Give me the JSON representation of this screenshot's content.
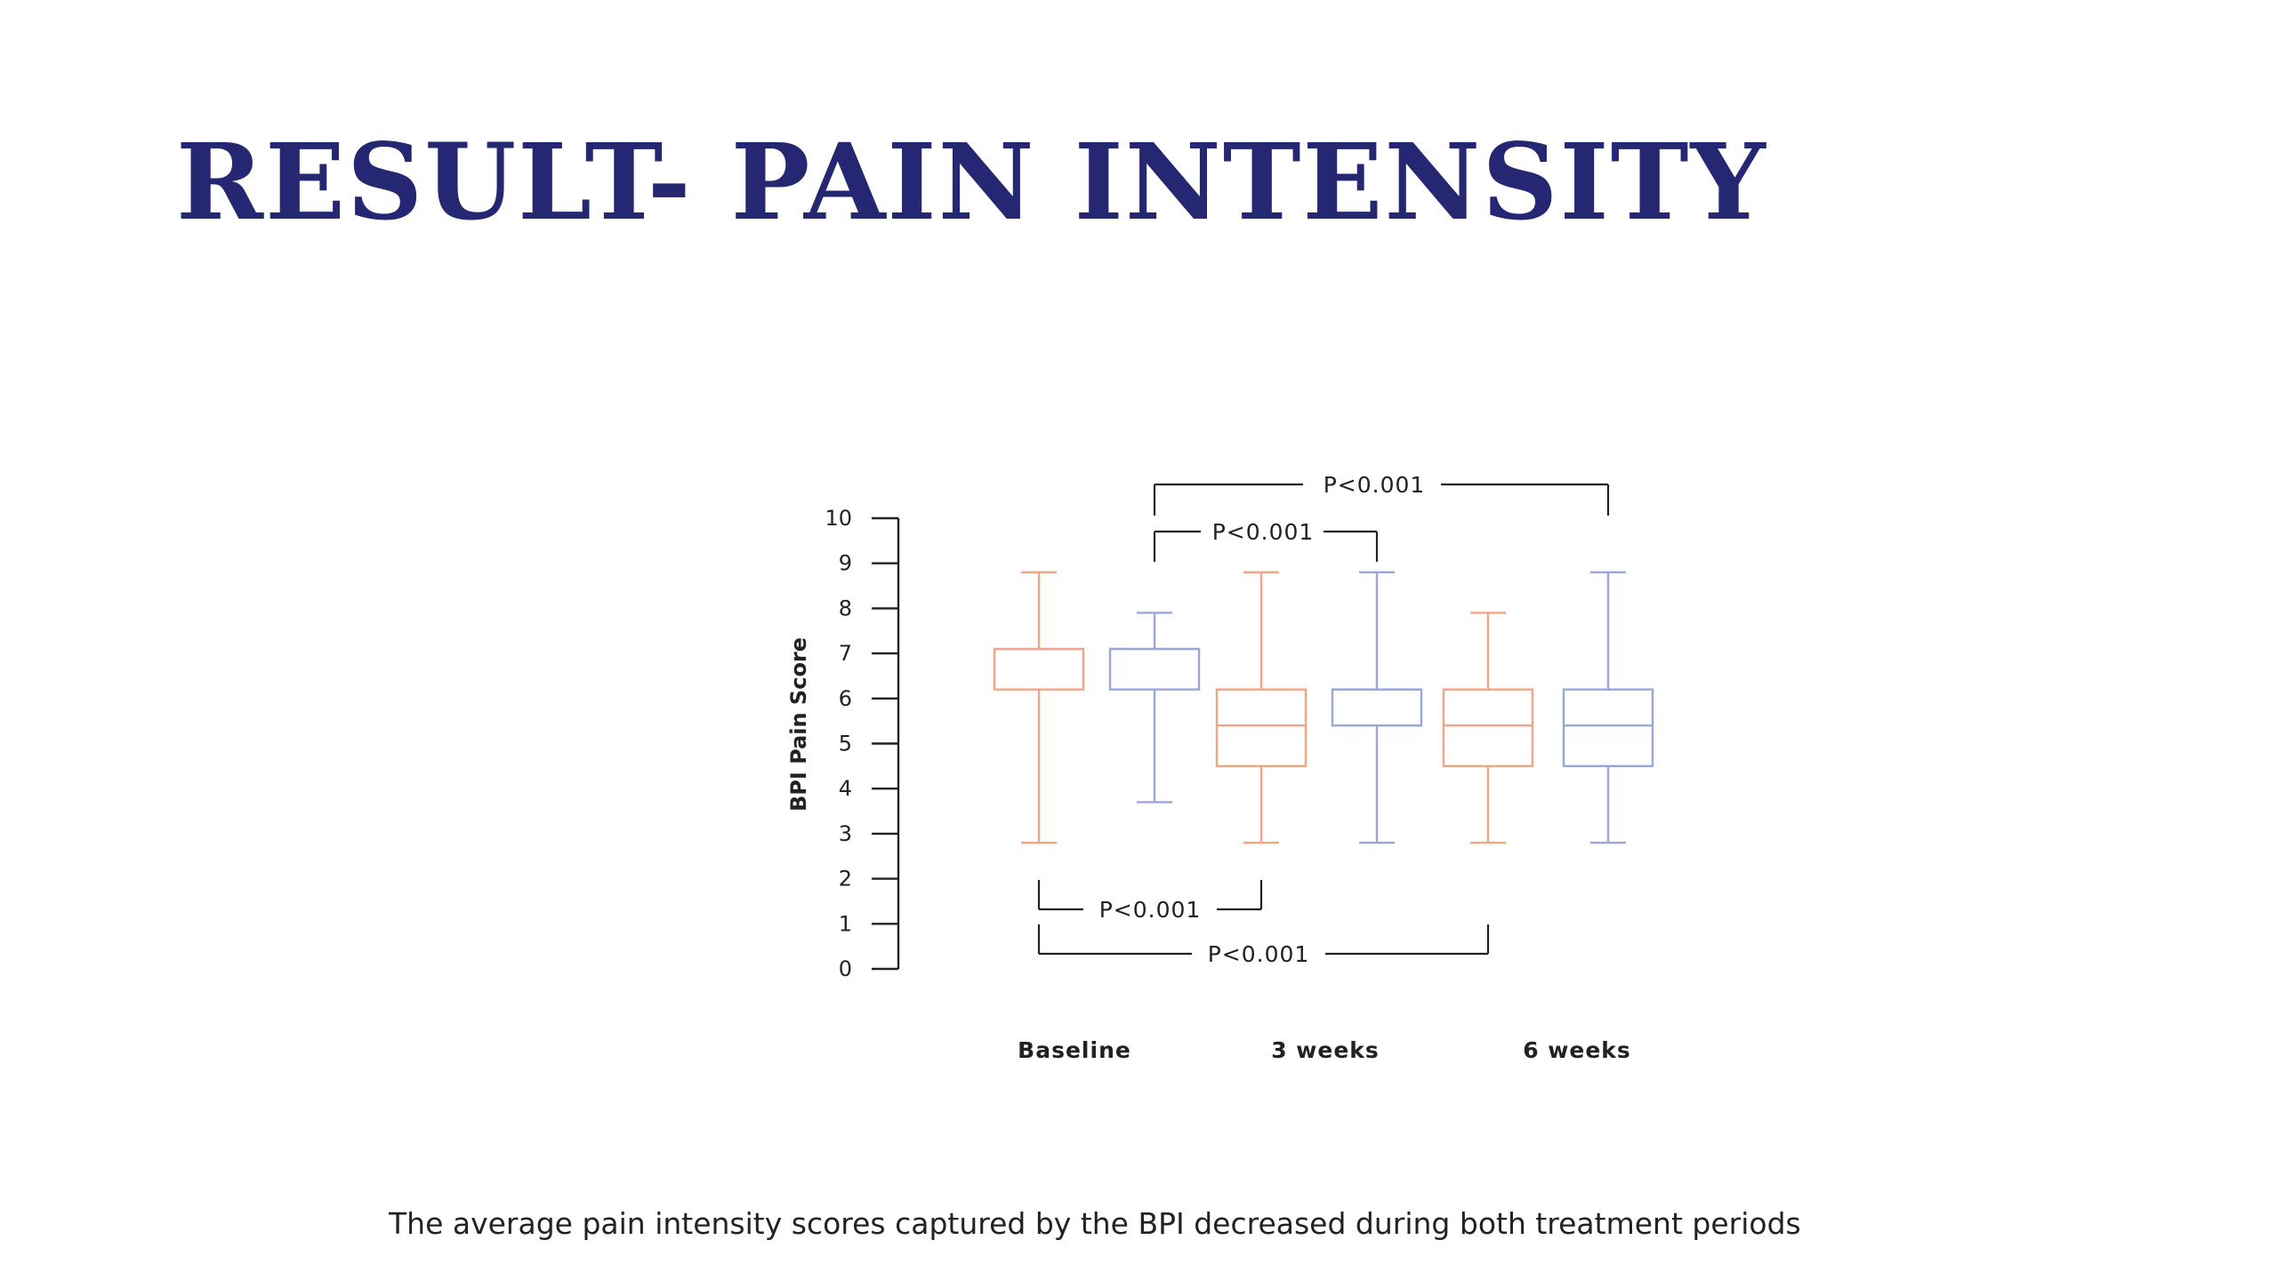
{
  "slide": {
    "title": "RESULT- PAIN INTENSITY",
    "caption": "The average pain intensity scores captured by the BPI decreased during both treatment periods"
  },
  "colors": {
    "title": "#252773",
    "series_a": "#F3A486",
    "series_b": "#9AA6DB",
    "axis": "#222222"
  },
  "chart_data": {
    "type": "boxplot",
    "title": "",
    "xlabel": "",
    "ylabel": "BPI Pain Score",
    "ylim": [
      0,
      10
    ],
    "yticks": [
      "0",
      "1",
      "2",
      "3",
      "4",
      "5",
      "6",
      "7",
      "8",
      "9",
      "10"
    ],
    "groups": [
      "Baseline",
      "3 weeks",
      "6 weeks"
    ],
    "series": [
      {
        "name": "series-a",
        "color": "#F3A486",
        "boxes": [
          {
            "group": "Baseline",
            "whisker_low": 2.8,
            "q1": 6.2,
            "median": 7.1,
            "q3": 7.1,
            "whisker_high": 8.8
          },
          {
            "group": "3 weeks",
            "whisker_low": 2.8,
            "q1": 4.5,
            "median": 5.4,
            "q3": 6.2,
            "whisker_high": 8.8
          },
          {
            "group": "6 weeks",
            "whisker_low": 2.8,
            "q1": 4.5,
            "median": 5.4,
            "q3": 6.2,
            "whisker_high": 7.9
          }
        ]
      },
      {
        "name": "series-b",
        "color": "#9AA6DB",
        "boxes": [
          {
            "group": "Baseline",
            "whisker_low": 3.7,
            "q1": 6.2,
            "median": 7.1,
            "q3": 7.1,
            "whisker_high": 7.9
          },
          {
            "group": "3 weeks",
            "whisker_low": 2.8,
            "q1": 5.4,
            "median": 6.2,
            "q3": 6.2,
            "whisker_high": 8.8
          },
          {
            "group": "6 weeks",
            "whisker_low": 2.8,
            "q1": 4.5,
            "median": 5.4,
            "q3": 6.2,
            "whisker_high": 8.8
          }
        ]
      }
    ],
    "annotations": [
      {
        "label": "P<0.001",
        "position": "above",
        "from": "series-b Baseline",
        "to": "series-b 6 weeks"
      },
      {
        "label": "P<0.001",
        "position": "above",
        "from": "series-b Baseline",
        "to": "series-b 3 weeks"
      },
      {
        "label": "P<0.001",
        "position": "below",
        "from": "series-a Baseline",
        "to": "series-a 3 weeks"
      },
      {
        "label": "P<0.001",
        "position": "below",
        "from": "series-a Baseline",
        "to": "series-a 6 weeks"
      }
    ]
  }
}
